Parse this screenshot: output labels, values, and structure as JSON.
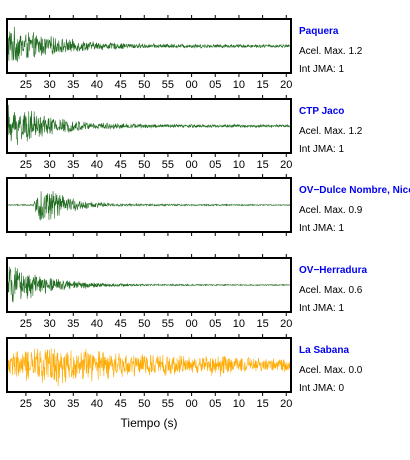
{
  "chart_data": {
    "type": "line",
    "xlabel": "Tiempo (s)",
    "x_tick_labels": [
      "25",
      "30",
      "35",
      "40",
      "45",
      "50",
      "55",
      "00",
      "05",
      "10",
      "15",
      "20"
    ],
    "xlim": [
      21,
      81
    ],
    "ylim": [
      -1,
      1
    ],
    "grid": false,
    "accel_label_prefix": "Acel. Max. ",
    "jma_label_prefix": "Int JMA: ",
    "station_label_color": "#0000ee",
    "panels": [
      {
        "station": "Paquera",
        "acel_max": "1.2",
        "int_jma": "1",
        "color": "#1f6b1f",
        "trace": {
          "onset": 21,
          "envelope": [
            [
              21,
              0.95
            ],
            [
              23,
              0.75
            ],
            [
              27,
              0.55
            ],
            [
              32,
              0.35
            ],
            [
              40,
              0.18
            ],
            [
              50,
              0.1
            ],
            [
              81,
              0.07
            ]
          ]
        }
      },
      {
        "station": "CTP Jaco",
        "acel_max": "1.2",
        "int_jma": "1",
        "color": "#1f6b1f",
        "trace": {
          "onset": 21,
          "envelope": [
            [
              21,
              0.95
            ],
            [
              24,
              0.8
            ],
            [
              28,
              0.55
            ],
            [
              33,
              0.3
            ],
            [
              40,
              0.15
            ],
            [
              50,
              0.09
            ],
            [
              81,
              0.06
            ]
          ]
        }
      },
      {
        "station": "OV−Dulce Nombre, Nicoya",
        "acel_max": "0.9",
        "int_jma": "1",
        "color": "#1f6b1f",
        "trace": {
          "onset": 27,
          "envelope": [
            [
              21,
              0.02
            ],
            [
              26.5,
              0.03
            ],
            [
              28.5,
              0.95
            ],
            [
              30,
              0.75
            ],
            [
              33,
              0.4
            ],
            [
              37,
              0.18
            ],
            [
              45,
              0.05
            ],
            [
              81,
              0.02
            ]
          ]
        }
      },
      {
        "station": "OV−Herradura",
        "acel_max": "0.6",
        "int_jma": "1",
        "color": "#1f6b1f",
        "trace": {
          "onset": 21,
          "envelope": [
            [
              21,
              0.85
            ],
            [
              25,
              0.6
            ],
            [
              30,
              0.35
            ],
            [
              35,
              0.18
            ],
            [
              42,
              0.08
            ],
            [
              50,
              0.04
            ],
            [
              81,
              0.02
            ]
          ]
        }
      },
      {
        "station": "La Sabana",
        "acel_max": "0.0",
        "int_jma": "0",
        "color": "#ffaa00",
        "trace": {
          "onset": 21,
          "envelope": [
            [
              21,
              0.5
            ],
            [
              26,
              0.75
            ],
            [
              30,
              0.95
            ],
            [
              36,
              0.75
            ],
            [
              45,
              0.55
            ],
            [
              60,
              0.4
            ],
            [
              66,
              0.5
            ],
            [
              70,
              0.35
            ],
            [
              81,
              0.3
            ]
          ]
        }
      }
    ],
    "tick_label_panels": [
      0,
      1,
      3,
      4
    ]
  }
}
